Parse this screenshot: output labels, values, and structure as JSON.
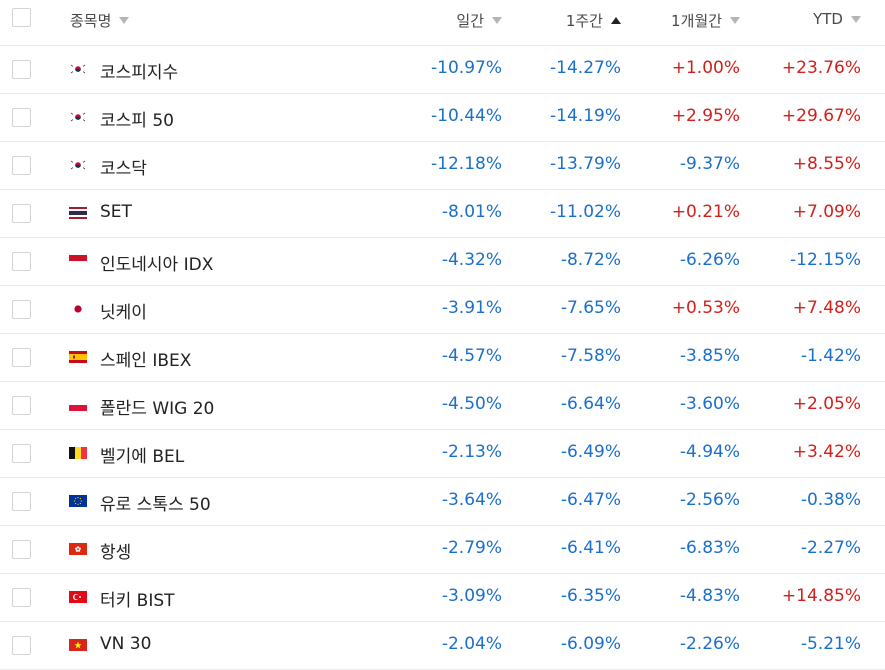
{
  "header": {
    "name_label": "종목명",
    "daily_label": "일간",
    "weekly_label": "1주간",
    "monthly_label": "1개월간",
    "ytd_label": "YTD"
  },
  "colors": {
    "positive": "#d1201c",
    "negative": "#1a6fce"
  },
  "rows": [
    {
      "name": "코스피지수",
      "flag": "korea-flag",
      "daily": "-10.97%",
      "weekly": "-14.27%",
      "monthly": "+1.00%",
      "ytd": "+23.76%"
    },
    {
      "name": "코스피 50",
      "flag": "korea-flag",
      "daily": "-10.44%",
      "weekly": "-14.19%",
      "monthly": "+2.95%",
      "ytd": "+29.67%"
    },
    {
      "name": "코스닥",
      "flag": "korea-flag",
      "daily": "-12.18%",
      "weekly": "-13.79%",
      "monthly": "-9.37%",
      "ytd": "+8.55%"
    },
    {
      "name": "SET",
      "flag": "thailand-flag",
      "daily": "-8.01%",
      "weekly": "-11.02%",
      "monthly": "+0.21%",
      "ytd": "+7.09%"
    },
    {
      "name": "인도네시아 IDX",
      "flag": "indonesia-flag",
      "daily": "-4.32%",
      "weekly": "-8.72%",
      "monthly": "-6.26%",
      "ytd": "-12.15%"
    },
    {
      "name": "닛케이",
      "flag": "japan-flag",
      "daily": "-3.91%",
      "weekly": "-7.65%",
      "monthly": "+0.53%",
      "ytd": "+7.48%"
    },
    {
      "name": "스페인 IBEX",
      "flag": "spain-flag",
      "daily": "-4.57%",
      "weekly": "-7.58%",
      "monthly": "-3.85%",
      "ytd": "-1.42%"
    },
    {
      "name": "폴란드 WIG 20",
      "flag": "poland-flag",
      "daily": "-4.50%",
      "weekly": "-6.64%",
      "monthly": "-3.60%",
      "ytd": "+2.05%"
    },
    {
      "name": "벨기에 BEL",
      "flag": "belgium-flag",
      "daily": "-2.13%",
      "weekly": "-6.49%",
      "monthly": "-4.94%",
      "ytd": "+3.42%"
    },
    {
      "name": "유로 스톡스 50",
      "flag": "eu-flag",
      "daily": "-3.64%",
      "weekly": "-6.47%",
      "monthly": "-2.56%",
      "ytd": "-0.38%"
    },
    {
      "name": "항셍",
      "flag": "hong-kong-flag",
      "daily": "-2.79%",
      "weekly": "-6.41%",
      "monthly": "-6.83%",
      "ytd": "-2.27%"
    },
    {
      "name": "터키 BIST",
      "flag": "turkey-flag",
      "daily": "-3.09%",
      "weekly": "-6.35%",
      "monthly": "-4.83%",
      "ytd": "+14.85%"
    },
    {
      "name": "VN 30",
      "flag": "vietnam-flag",
      "daily": "-2.04%",
      "weekly": "-6.09%",
      "monthly": "-2.26%",
      "ytd": "-5.21%"
    }
  ]
}
